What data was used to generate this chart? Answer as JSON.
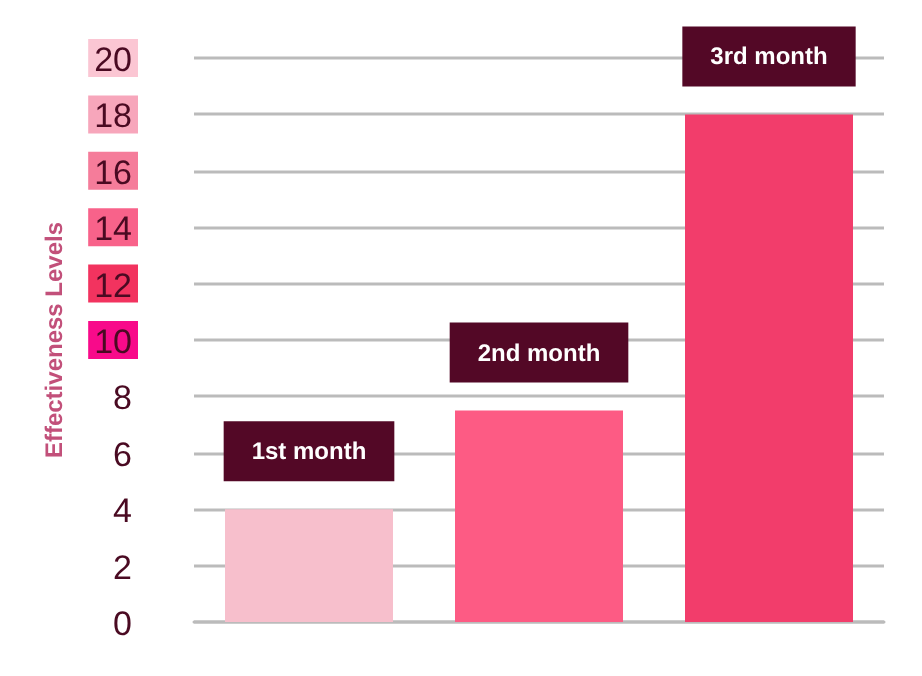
{
  "chart_data": {
    "type": "bar",
    "ylabel": "Effectiveness Levels",
    "categories": [
      "1st month",
      "2nd month",
      "3rd month"
    ],
    "values": [
      4,
      7.5,
      18
    ],
    "colors": [
      "#f7bfcc",
      "#fd5b84",
      "#f23d6b"
    ],
    "ylim": [
      0,
      20
    ],
    "yticks": [
      0,
      2,
      4,
      6,
      8,
      10,
      12,
      14,
      16,
      18,
      20
    ],
    "grid": "y"
  }
}
